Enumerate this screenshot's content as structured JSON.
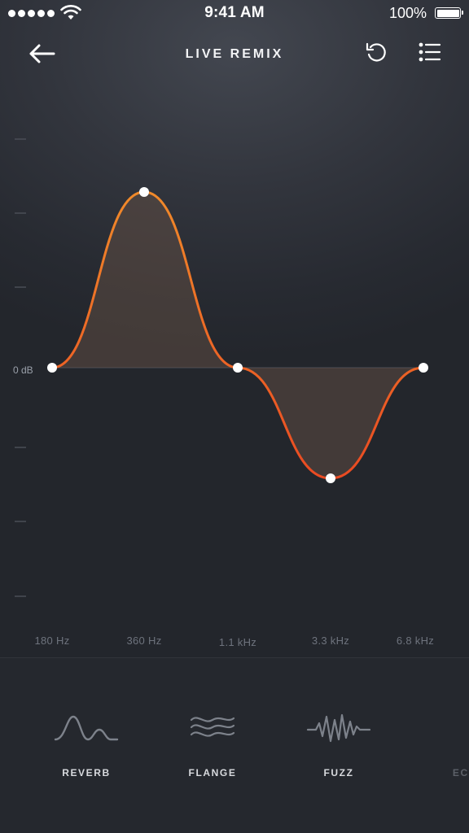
{
  "status_bar": {
    "time": "9:41 AM",
    "battery": "100%",
    "signal_icon": "signal-dots-icon",
    "wifi_icon": "wifi-icon",
    "battery_icon": "battery-icon"
  },
  "header": {
    "title": "LIVE REMIX",
    "back_icon": "arrow-left-icon",
    "reset_icon": "reset-icon",
    "menu_icon": "list-icon"
  },
  "equalizer": {
    "zero_label": "0 dB",
    "accent_color": "#f26a22",
    "bands": [
      {
        "label": "180 Hz",
        "level": 0
      },
      {
        "label": "360 Hz",
        "level": 0.54
      },
      {
        "label": "1.1 kHz",
        "level": 0
      },
      {
        "label": "3.3 kHz",
        "level": -0.34
      },
      {
        "label": "6.8 kHz",
        "level": 0
      }
    ]
  },
  "effects": [
    {
      "label": "REVERB",
      "icon": "reverb-wave-icon"
    },
    {
      "label": "FLANGE",
      "icon": "flange-wave-icon"
    },
    {
      "label": "FUZZ",
      "icon": "fuzz-wave-icon"
    },
    {
      "label": "ECH",
      "icon": "echo-wave-icon"
    }
  ]
}
